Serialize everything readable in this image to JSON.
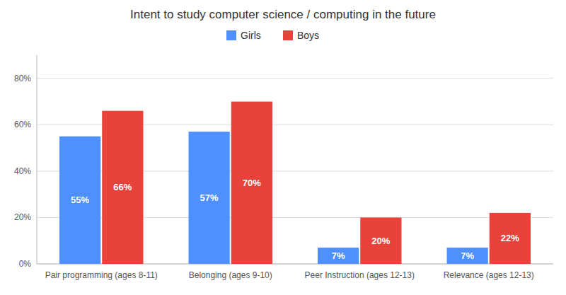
{
  "chart_data": {
    "type": "bar",
    "title": "Intent to study computer science / computing in the future",
    "categories": [
      "Pair programming (ages 8-11)",
      "Belonging (ages 9-10)",
      "Peer Instruction (ages 12-13)",
      "Relevance (ages 12-13)"
    ],
    "series": [
      {
        "name": "Girls",
        "color": "#4d90fe",
        "values": [
          0.55,
          0.57,
          0.07,
          0.07
        ],
        "value_labels": [
          "55%",
          "57%",
          "7%",
          "7%"
        ]
      },
      {
        "name": "Boys",
        "color": "#e8433a",
        "values": [
          0.66,
          0.7,
          0.2,
          0.22
        ],
        "value_labels": [
          "66%",
          "70%",
          "20%",
          "22%"
        ]
      }
    ],
    "ylim": [
      0,
      0.9
    ],
    "yticks": [
      {
        "value": 0.0,
        "label": "0%"
      },
      {
        "value": 0.2,
        "label": "20%"
      },
      {
        "value": 0.4,
        "label": "40%"
      },
      {
        "value": 0.6,
        "label": "60%"
      },
      {
        "value": 0.8,
        "label": "80%"
      }
    ],
    "grid": true,
    "legend": "top",
    "data_labels": true
  }
}
